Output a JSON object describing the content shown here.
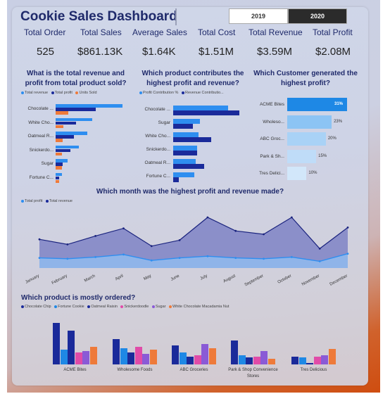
{
  "title": "Cookie Sales Dashboard",
  "year_filter": {
    "options": [
      "2019",
      "2020"
    ],
    "selected": "2020"
  },
  "kpis": [
    {
      "label": "Total Order",
      "value": "525"
    },
    {
      "label": "Total Sales",
      "value": "$861.13K"
    },
    {
      "label": "Average Sales",
      "value": "$1.64K"
    },
    {
      "label": "Total Cost",
      "value": "$1.51M"
    },
    {
      "label": "Total Revenue",
      "value": "$3.59M"
    },
    {
      "label": "Total Profit",
      "value": "$2.08M"
    }
  ],
  "colors": {
    "light_blue": "#2e8ef0",
    "dark_navy": "#1a2a9a",
    "orange": "#ee7a3a",
    "pink": "#e04ba8",
    "purple": "#8a5ad6",
    "teal": "#1e88e5"
  },
  "chart_data": [
    {
      "id": "revenue-profit",
      "type": "bar",
      "title": "What is the total revenue and profit from total product sold?",
      "legend": [
        "Total revenue",
        "Total profit",
        "Units Sold"
      ],
      "categories": [
        "Chocolate ...",
        "White Cho...",
        "Oatmeal R...",
        "Snickerdo...",
        "Sugar",
        "Fortune C..."
      ],
      "series": [
        {
          "name": "Total revenue",
          "values": [
            95,
            52,
            45,
            33,
            17,
            9
          ]
        },
        {
          "name": "Total profit",
          "values": [
            57,
            29,
            26,
            21,
            10,
            5
          ]
        },
        {
          "name": "Units Sold",
          "values": [
            18,
            11,
            10,
            9,
            9,
            5
          ]
        }
      ]
    },
    {
      "id": "profit-contribution",
      "type": "bar",
      "title": "Which product contributes the highest profit and revenue?",
      "legend": [
        "Profit Contribution %",
        "Revenue Contributio..."
      ],
      "categories": [
        "Chocolate ...",
        "Sugar",
        "White Cho...",
        "Snickerdo...",
        "Oatmeal R...",
        "Fortune C..."
      ],
      "series": [
        {
          "name": "Profit Contribution %",
          "values": [
            78,
            38,
            36,
            34,
            32,
            30
          ]
        },
        {
          "name": "Revenue Contributio...",
          "values": [
            94,
            28,
            54,
            34,
            44,
            8
          ]
        }
      ]
    },
    {
      "id": "customer-profit",
      "type": "bar",
      "title": "Which Customer generated the highest profit?",
      "categories": [
        "ACME Bites",
        "Wholeso...",
        "ABC Groc...",
        "Park & Sh...",
        "Tres Delici..."
      ],
      "values": [
        31,
        23,
        20,
        15,
        10
      ],
      "labels": [
        "31%",
        "23%",
        "20%",
        "15%",
        "10%"
      ]
    },
    {
      "id": "monthly-profit-revenue",
      "type": "area",
      "title": "Which month was the highest profit and revenue made?",
      "legend": [
        "Total profit",
        "Total revenue"
      ],
      "categories": [
        "January",
        "February",
        "March",
        "April",
        "May",
        "June",
        "July",
        "August",
        "September",
        "October",
        "November",
        "December"
      ],
      "series": [
        {
          "name": "Total revenue",
          "values": [
            34,
            28,
            38,
            47,
            26,
            33,
            60,
            44,
            40,
            60,
            23,
            48
          ]
        },
        {
          "name": "Total profit",
          "values": [
            12,
            11,
            13,
            16,
            9,
            12,
            14,
            12,
            11,
            13,
            8,
            17
          ]
        }
      ],
      "ylim": [
        0,
        70
      ]
    },
    {
      "id": "products-ordered",
      "type": "bar",
      "title": "Which product is mostly ordered?",
      "legend": [
        "Chocolate Chip",
        "Fortune Cookie",
        "Oatmeal Raisin",
        "Snickerdoodle",
        "Sugar",
        "White Chocolate Macadamia Nut"
      ],
      "categories": [
        "ACME Bites",
        "Wholesome Foods",
        "ABC Groceries",
        "Park & Shop Convenience Stores",
        "Tres Delicious"
      ],
      "series": [
        {
          "name": "Chocolate Chip",
          "values": [
            62,
            38,
            28,
            36,
            12
          ]
        },
        {
          "name": "Fortune Cookie",
          "values": [
            22,
            24,
            18,
            14,
            10
          ]
        },
        {
          "name": "Oatmeal Raisin",
          "values": [
            50,
            18,
            12,
            10,
            2
          ]
        },
        {
          "name": "Snickerdoodle",
          "values": [
            18,
            26,
            14,
            12,
            12
          ]
        },
        {
          "name": "Sugar",
          "values": [
            20,
            16,
            30,
            20,
            14
          ]
        },
        {
          "name": "White Chocolate Macadamia Nut",
          "values": [
            26,
            22,
            24,
            8,
            23
          ]
        }
      ],
      "ylim": [
        0,
        65
      ]
    }
  ]
}
